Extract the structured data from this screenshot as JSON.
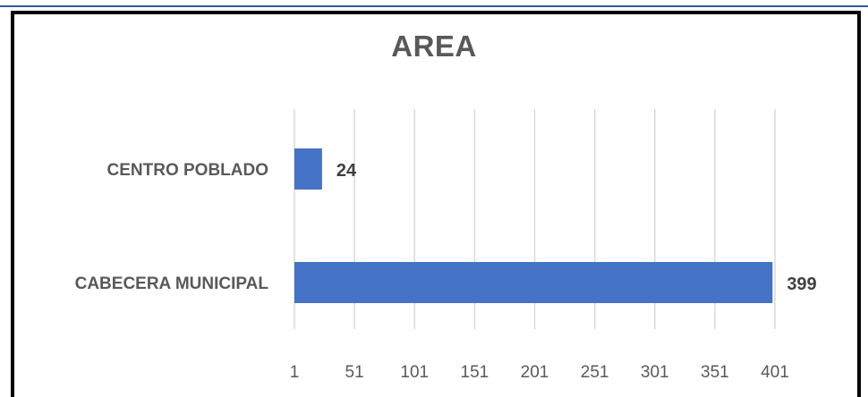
{
  "chart_data": {
    "type": "bar",
    "orientation": "horizontal",
    "title": "AREA",
    "categories": [
      "CENTRO POBLADO",
      "CABECERA MUNICIPAL"
    ],
    "values": [
      24,
      399
    ],
    "xlim": [
      1,
      401
    ],
    "xticks": [
      "1",
      "51",
      "101",
      "151",
      "201",
      "251",
      "301",
      "351",
      "401"
    ],
    "xlabel": "",
    "ylabel": "",
    "grid": true,
    "legend": "none",
    "bar_color": "#4472c4",
    "grid_color": "#d9d9d9"
  }
}
